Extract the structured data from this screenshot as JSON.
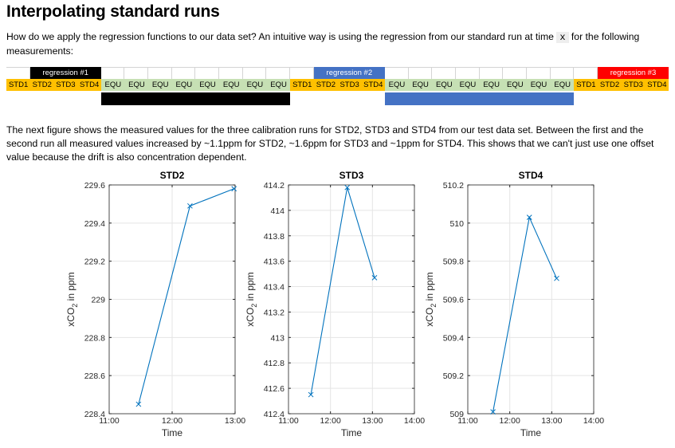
{
  "heading": "Interpolating standard runs",
  "intro": {
    "before": "How do we apply the regression functions to our data set? An intuitive way is using the regression from our standard run at time",
    "code": "x",
    "after": "for the following measurements:"
  },
  "timeline": {
    "regressions": [
      {
        "label": "regression #1",
        "color": "#000000"
      },
      {
        "label": "regression #2",
        "color": "#4472c4"
      },
      {
        "label": "regression #3",
        "color": "#ff0000"
      }
    ],
    "cells": [
      "STD1",
      "STD2",
      "STD3",
      "STD4",
      "EQU",
      "EQU",
      "EQU",
      "EQU",
      "EQU",
      "EQU",
      "EQU",
      "EQU",
      "STD1",
      "STD2",
      "STD3",
      "STD4",
      "EQU",
      "EQU",
      "EQU",
      "EQU",
      "EQU",
      "EQU",
      "EQU",
      "EQU",
      "STD1",
      "STD2",
      "STD3",
      "STD4"
    ],
    "colors": {
      "std": "#ffc000",
      "equ": "#c6e0b4"
    }
  },
  "description": "The next figure shows the measured values for the three calibration runs for STD2, STD3 and STD4 from our test data set. Between the first and the second run all measured values increased by ~1.1ppm for STD2, ~1.6ppm for STD3 and ~1ppm for STD4. This shows that we can't just use one offset value because the drift is also concentration dependent.",
  "chart_data": [
    {
      "type": "line",
      "title": "STD2",
      "xlabel": "Time",
      "ylabel": "xCO2 in ppm",
      "x": [
        "11:28",
        "12:17",
        "12:59"
      ],
      "y": [
        228.45,
        229.49,
        229.58
      ],
      "xlim": [
        "11:00",
        "13:00"
      ],
      "ylim": [
        228.4,
        229.6
      ],
      "xticks": [
        "11:00",
        "12:00",
        "13:00"
      ],
      "yticks": [
        "228.4",
        "228.6",
        "228.8",
        "229",
        "229.2",
        "229.4",
        "229.6"
      ],
      "grid": true,
      "color": "#0072bd",
      "marker": "x"
    },
    {
      "type": "line",
      "title": "STD3",
      "xlabel": "Time",
      "ylabel": "xCO2 in ppm",
      "x": [
        "11:32",
        "12:24",
        "13:03"
      ],
      "y": [
        412.55,
        414.18,
        413.47
      ],
      "xlim": [
        "11:00",
        "14:00"
      ],
      "ylim": [
        412.4,
        414.2
      ],
      "xticks": [
        "11:00",
        "12:00",
        "13:00",
        "14:00"
      ],
      "yticks": [
        "412.4",
        "412.6",
        "412.8",
        "413",
        "413.2",
        "413.4",
        "413.6",
        "413.8",
        "414",
        "414.2"
      ],
      "grid": true,
      "color": "#0072bd",
      "marker": "x"
    },
    {
      "type": "line",
      "title": "STD4",
      "xlabel": "Time",
      "ylabel": "xCO2 in ppm",
      "x": [
        "11:36",
        "12:28",
        "13:07"
      ],
      "y": [
        509.01,
        510.03,
        509.71
      ],
      "xlim": [
        "11:00",
        "14:00"
      ],
      "ylim": [
        509,
        510.2
      ],
      "xticks": [
        "11:00",
        "12:00",
        "13:00",
        "14:00"
      ],
      "yticks": [
        "509",
        "509.2",
        "509.4",
        "509.6",
        "509.8",
        "510",
        "510.2"
      ],
      "grid": true,
      "color": "#0072bd",
      "marker": "x"
    }
  ]
}
